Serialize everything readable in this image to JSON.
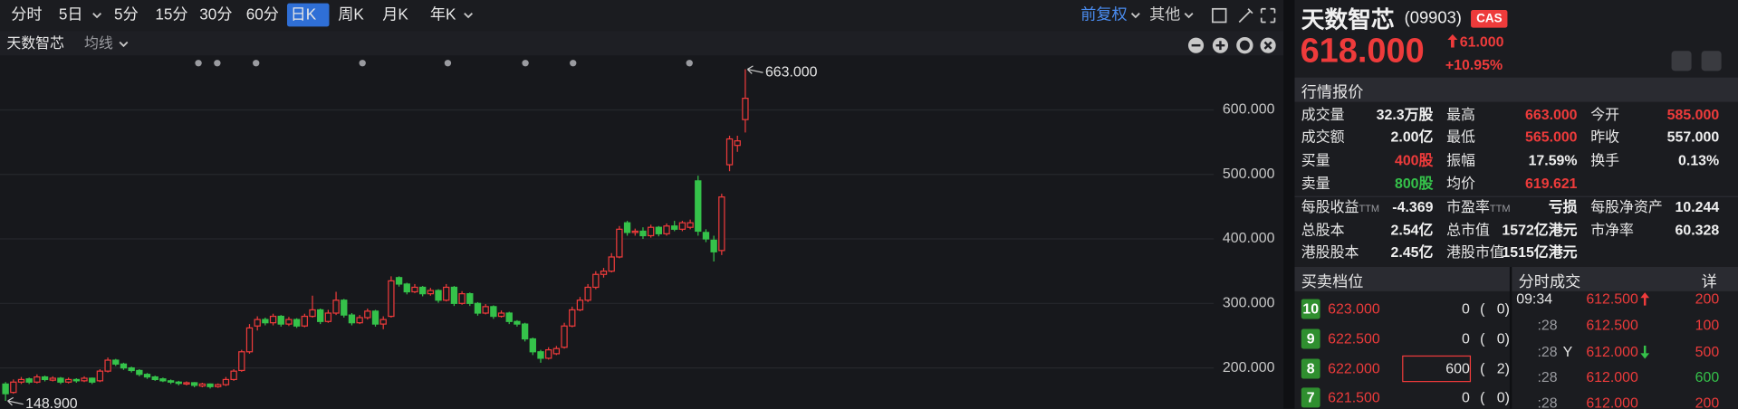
{
  "toolbar": {
    "periods": [
      "分时",
      "5日",
      "5分",
      "15分",
      "30分",
      "60分",
      "日K",
      "周K",
      "月K",
      "年K"
    ],
    "active": 6,
    "adjust": "前复权",
    "more": "其他"
  },
  "chart_header": {
    "name": "天数智芯",
    "ma": "均线"
  },
  "chart_data": {
    "type": "candlestick",
    "up_color": "#ee3b3b",
    "down_color": "#35c24a",
    "grid": true,
    "ylim": [
      142,
      688
    ],
    "yticks": [
      {
        "value": 200,
        "label": "200.000"
      },
      {
        "value": 300,
        "label": "300.000"
      },
      {
        "value": 400,
        "label": "400.000"
      },
      {
        "value": 500,
        "label": "500.000"
      },
      {
        "value": 600,
        "label": "600.000"
      }
    ],
    "annotations": [
      {
        "value": 663,
        "label": "663.000"
      },
      {
        "value": 148.9,
        "label": "148.900"
      }
    ],
    "ohlc": [
      [
        175,
        178,
        148.9,
        160
      ],
      [
        162,
        182,
        160,
        178
      ],
      [
        178,
        186,
        175,
        182
      ],
      [
        183,
        185,
        175,
        178
      ],
      [
        178,
        190,
        176,
        186
      ],
      [
        186,
        188,
        179,
        182
      ],
      [
        181,
        187,
        179,
        184
      ],
      [
        184,
        186,
        175,
        178
      ],
      [
        178,
        185,
        176,
        182
      ],
      [
        182,
        184,
        177,
        180
      ],
      [
        180,
        187,
        178,
        184
      ],
      [
        184,
        185,
        175,
        178
      ],
      [
        180,
        198,
        178,
        195
      ],
      [
        195,
        216,
        193,
        212
      ],
      [
        212,
        214,
        203,
        206
      ],
      [
        206,
        208,
        197,
        200
      ],
      [
        200,
        202,
        193,
        196
      ],
      [
        196,
        198,
        187,
        190
      ],
      [
        190,
        192,
        183,
        186
      ],
      [
        186,
        188,
        180,
        182
      ],
      [
        183,
        185,
        178,
        180
      ],
      [
        180,
        182,
        175,
        178
      ],
      [
        178,
        180,
        173,
        176
      ],
      [
        175,
        179,
        173,
        177
      ],
      [
        177,
        178,
        170,
        173
      ],
      [
        172,
        177,
        170,
        175
      ],
      [
        175,
        176,
        168,
        171
      ],
      [
        171,
        176,
        169,
        174
      ],
      [
        174,
        186,
        172,
        182
      ],
      [
        182,
        198,
        180,
        195
      ],
      [
        196,
        228,
        194,
        225
      ],
      [
        225,
        268,
        222,
        262
      ],
      [
        265,
        280,
        258,
        275
      ],
      [
        275,
        278,
        266,
        270
      ],
      [
        270,
        284,
        266,
        280
      ],
      [
        280,
        282,
        264,
        268
      ],
      [
        268,
        279,
        265,
        275
      ],
      [
        275,
        277,
        262,
        265
      ],
      [
        265,
        284,
        263,
        280
      ],
      [
        280,
        312,
        278,
        290
      ],
      [
        290,
        292,
        268,
        272
      ],
      [
        272,
        290,
        270,
        285
      ],
      [
        285,
        318,
        282,
        305
      ],
      [
        305,
        307,
        278,
        282
      ],
      [
        282,
        285,
        266,
        270
      ],
      [
        270,
        282,
        268,
        278
      ],
      [
        278,
        292,
        275,
        288
      ],
      [
        288,
        290,
        264,
        268
      ],
      [
        268,
        280,
        260,
        275
      ],
      [
        280,
        342,
        278,
        335
      ],
      [
        340,
        342,
        326,
        330
      ],
      [
        330,
        332,
        314,
        318
      ],
      [
        318,
        330,
        316,
        325
      ],
      [
        325,
        327,
        311,
        315
      ],
      [
        315,
        324,
        312,
        320
      ],
      [
        320,
        322,
        301,
        305
      ],
      [
        305,
        330,
        303,
        325
      ],
      [
        325,
        327,
        296,
        300
      ],
      [
        300,
        319,
        298,
        315
      ],
      [
        315,
        317,
        296,
        300
      ],
      [
        300,
        302,
        281,
        285
      ],
      [
        285,
        299,
        283,
        295
      ],
      [
        295,
        297,
        276,
        280
      ],
      [
        280,
        289,
        278,
        285
      ],
      [
        285,
        287,
        268,
        272
      ],
      [
        272,
        274,
        264,
        268
      ],
      [
        268,
        270,
        241,
        245
      ],
      [
        245,
        247,
        220,
        225
      ],
      [
        225,
        228,
        208,
        215
      ],
      [
        215,
        232,
        213,
        228
      ],
      [
        222,
        234,
        220,
        230
      ],
      [
        232,
        270,
        230,
        265
      ],
      [
        265,
        295,
        263,
        290
      ],
      [
        290,
        310,
        288,
        305
      ],
      [
        305,
        330,
        302,
        325
      ],
      [
        325,
        350,
        322,
        345
      ],
      [
        345,
        355,
        340,
        350
      ],
      [
        350,
        378,
        348,
        372
      ],
      [
        372,
        420,
        370,
        415
      ],
      [
        425,
        428,
        405,
        410
      ],
      [
        410,
        416,
        405,
        412
      ],
      [
        412,
        418,
        400,
        405
      ],
      [
        405,
        422,
        402,
        418
      ],
      [
        418,
        420,
        404,
        408
      ],
      [
        408,
        424,
        405,
        420
      ],
      [
        420,
        428,
        412,
        415
      ],
      [
        415,
        428,
        412,
        425
      ],
      [
        418,
        430,
        415,
        425
      ],
      [
        490,
        498,
        405,
        412
      ],
      [
        410,
        415,
        395,
        400
      ],
      [
        398,
        405,
        365,
        380
      ],
      [
        382,
        470,
        375,
        465
      ],
      [
        515,
        560,
        505,
        555
      ],
      [
        545,
        560,
        535,
        552
      ],
      [
        585,
        663,
        565,
        618
      ]
    ]
  },
  "quote_header": {
    "name": "天数智芯",
    "code": "(09903)",
    "badge": "CAS",
    "price": "618.000",
    "change": "61.000",
    "change_pct": "+10.95%"
  },
  "quote": {
    "title": "行情报价",
    "rows": [
      [
        {
          "label": "成交量",
          "value": "32.3万股"
        },
        {
          "label": "最高",
          "value": "663.000",
          "tone": "up"
        },
        {
          "label": "今开",
          "value": "585.000",
          "tone": "up"
        }
      ],
      [
        {
          "label": "成交额",
          "value": "2.00亿"
        },
        {
          "label": "最低",
          "value": "565.000",
          "tone": "up"
        },
        {
          "label": "昨收",
          "value": "557.000"
        }
      ],
      [
        {
          "label": "买量",
          "value": "400股",
          "tone": "up"
        },
        {
          "label": "振幅",
          "value": "17.59%"
        },
        {
          "label": "换手",
          "value": "0.13%"
        }
      ],
      [
        {
          "label": "卖量",
          "value": "800股",
          "tone": "down"
        },
        {
          "label": "均价",
          "value": "619.621",
          "tone": "up"
        }
      ]
    ]
  },
  "fundamentals": {
    "rows": [
      [
        {
          "label": "每股收益",
          "sub": "TTM",
          "value": "-4.369"
        },
        {
          "label": "市盈率",
          "sub": "TTM",
          "value": "亏损"
        },
        {
          "label": "每股净资产",
          "value": "10.244"
        }
      ],
      [
        {
          "label": "总股本",
          "value": "2.54亿"
        },
        {
          "label": "总市值",
          "value": "1572亿港元"
        },
        {
          "label": "市净率",
          "value": "60.328"
        }
      ],
      [
        {
          "label": "港股股本",
          "value": "2.45亿"
        },
        {
          "label": "港股市值",
          "value": "1515亿港元"
        }
      ]
    ]
  },
  "order_book": {
    "title": "买卖档位",
    "levels": [
      {
        "level": "10",
        "price": "623.000",
        "qty": "0",
        "orders": "(   0)"
      },
      {
        "level": "9",
        "price": "622.500",
        "qty": "0",
        "orders": "(   0)"
      },
      {
        "level": "8",
        "price": "622.000",
        "qty": "600",
        "orders": "(   2)",
        "highlight": true
      },
      {
        "level": "7",
        "price": "621.500",
        "qty": "0",
        "orders": "(   0)"
      }
    ]
  },
  "trades": {
    "title": "分时成交",
    "detail": "详",
    "rows": [
      {
        "time": "09:34",
        "price": "612.500",
        "dir": "up",
        "volume": "200",
        "tone": "up"
      },
      {
        "time": ":28",
        "price": "612.500",
        "volume": "100",
        "tone": "up"
      },
      {
        "time": ":28",
        "flag": "Y",
        "price": "612.000",
        "dir": "down",
        "volume": "500",
        "tone": "up"
      },
      {
        "time": ":28",
        "price": "612.000",
        "volume": "600",
        "tone": "down"
      },
      {
        "time": ":28",
        "price": "612.000",
        "volume": "200",
        "tone": "up"
      }
    ]
  }
}
